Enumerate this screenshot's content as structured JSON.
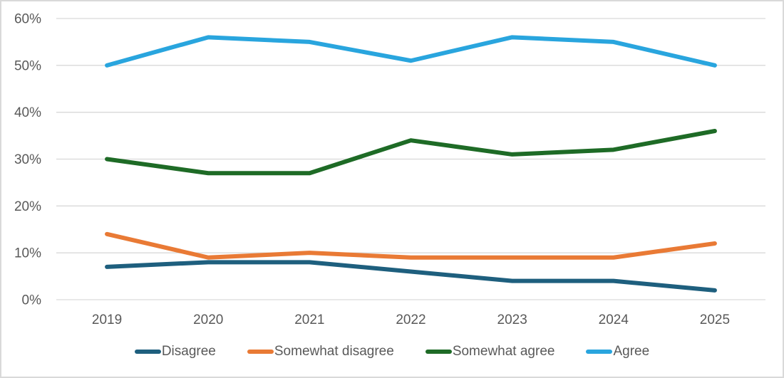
{
  "chart_data": {
    "type": "line",
    "title": "",
    "xlabel": "",
    "ylabel": "",
    "categories": [
      "2019",
      "2020",
      "2021",
      "2022",
      "2023",
      "2024",
      "2025"
    ],
    "series": [
      {
        "name": "Disagree",
        "color": "#1F central-placeholder",
        "values": []
      }
    ],
    "ylim": [
      0,
      60
    ],
    "ytick_step": 10,
    "ytick_labels": [
      "0%",
      "10%",
      "20%",
      "30%",
      "40%",
      "50%",
      "60%"
    ],
    "grid": "horizontal",
    "legend_position": "bottom",
    "gridline_color": "#D9D9D9",
    "axis_text_color": "#595959"
  }
}
